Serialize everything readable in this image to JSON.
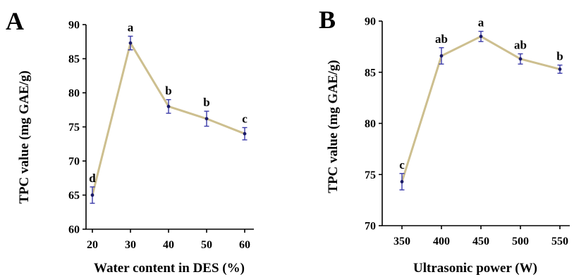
{
  "colors": {
    "line": "#cdbf8f",
    "error_bar": "#3a3aa8",
    "point": "#1a1a66",
    "axis": "#000000"
  },
  "chart_data": [
    {
      "id": "A",
      "type": "line",
      "panel_label": "A",
      "xlabel": "Water content in DES (%)",
      "ylabel": "TPC value (mg GAE/g)",
      "ylim": [
        60,
        90
      ],
      "yticks": [
        60,
        65,
        70,
        75,
        80,
        85,
        90
      ],
      "x": [
        20,
        30,
        40,
        50,
        60
      ],
      "xtick_labels": [
        "20",
        "30",
        "40",
        "50",
        "60"
      ],
      "y": [
        65.0,
        87.3,
        78.0,
        76.2,
        74.0
      ],
      "error": [
        1.2,
        1.0,
        1.0,
        1.1,
        0.9
      ],
      "significance": [
        "d",
        "a",
        "b",
        "b",
        "c"
      ],
      "grid": false,
      "legend": "none"
    },
    {
      "id": "B",
      "type": "line",
      "panel_label": "B",
      "xlabel": "Ultrasonic power (W)",
      "ylabel": "TPC value (mg GAE/g)",
      "ylim": [
        70,
        90
      ],
      "yticks": [
        70,
        75,
        80,
        85,
        90
      ],
      "x": [
        350,
        400,
        450,
        500,
        550
      ],
      "xtick_labels": [
        "350",
        "400",
        "450",
        "500",
        "550"
      ],
      "y": [
        74.3,
        86.6,
        88.5,
        86.3,
        85.3
      ],
      "error": [
        0.8,
        0.8,
        0.5,
        0.5,
        0.4
      ],
      "significance": [
        "c",
        "ab",
        "a",
        "ab",
        "b"
      ],
      "grid": false,
      "legend": "none"
    }
  ]
}
